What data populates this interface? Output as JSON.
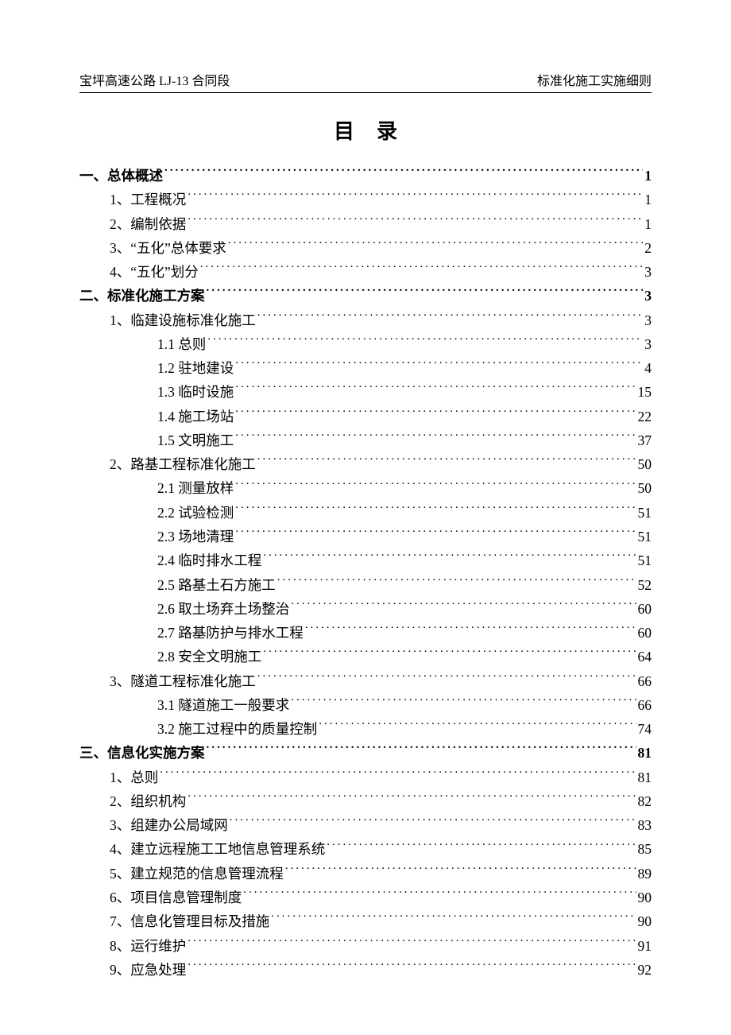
{
  "header": {
    "left": "宝坪高速公路 LJ-13 合同段",
    "right": "标准化施工实施细则"
  },
  "title": "目录",
  "toc": [
    {
      "level": 1,
      "bold": true,
      "label": "一、总体概述",
      "page": "1"
    },
    {
      "level": 2,
      "bold": false,
      "label": "1、工程概况",
      "page": "1"
    },
    {
      "level": 2,
      "bold": false,
      "label": "2、编制依据",
      "page": "1"
    },
    {
      "level": 2,
      "bold": false,
      "label": "3、“五化”总体要求",
      "page": "2"
    },
    {
      "level": 2,
      "bold": false,
      "label": "4、“五化”划分",
      "page": "3"
    },
    {
      "level": 1,
      "bold": true,
      "label": "二、标准化施工方案",
      "page": "3"
    },
    {
      "level": 2,
      "bold": false,
      "label": "1、临建设施标准化施工",
      "page": "3"
    },
    {
      "level": 3,
      "bold": false,
      "label": "1.1 总则",
      "page": "3"
    },
    {
      "level": 3,
      "bold": false,
      "label": "1.2 驻地建设",
      "page": "4"
    },
    {
      "level": 3,
      "bold": false,
      "label": "1.3 临时设施",
      "page": "15"
    },
    {
      "level": 3,
      "bold": false,
      "label": "1.4 施工场站",
      "page": "22"
    },
    {
      "level": 3,
      "bold": false,
      "label": "1.5 文明施工",
      "page": "37"
    },
    {
      "level": 2,
      "bold": false,
      "label": "2、路基工程标准化施工",
      "page": "50"
    },
    {
      "level": 3,
      "bold": false,
      "label": "2.1 测量放样",
      "page": "50"
    },
    {
      "level": 3,
      "bold": false,
      "label": "2.2 试验检测",
      "page": "51"
    },
    {
      "level": 3,
      "bold": false,
      "label": "2.3 场地清理",
      "page": "51"
    },
    {
      "level": 3,
      "bold": false,
      "label": "2.4 临时排水工程",
      "page": "51"
    },
    {
      "level": 3,
      "bold": false,
      "label": "2.5 路基土石方施工",
      "page": "52"
    },
    {
      "level": 3,
      "bold": false,
      "label": "2.6 取土场弃土场整治",
      "page": "60"
    },
    {
      "level": 3,
      "bold": false,
      "label": "2.7 路基防护与排水工程",
      "page": "60"
    },
    {
      "level": 3,
      "bold": false,
      "label": "2.8 安全文明施工",
      "page": "64"
    },
    {
      "level": 2,
      "bold": false,
      "label": "3、隧道工程标准化施工",
      "page": "66"
    },
    {
      "level": 3,
      "bold": false,
      "label": "3.1 隧道施工一般要求",
      "page": "66"
    },
    {
      "level": 3,
      "bold": false,
      "label": "3.2 施工过程中的质量控制",
      "page": "74"
    },
    {
      "level": 1,
      "bold": true,
      "label": "三、信息化实施方案",
      "page": "81"
    },
    {
      "level": 2,
      "bold": false,
      "label": "1、总则",
      "page": "81"
    },
    {
      "level": 2,
      "bold": false,
      "label": "2、组织机构",
      "page": "82"
    },
    {
      "level": 2,
      "bold": false,
      "label": "3、组建办公局域网",
      "page": "83"
    },
    {
      "level": 2,
      "bold": false,
      "label": "4、建立远程施工工地信息管理系统",
      "page": "85"
    },
    {
      "level": 2,
      "bold": false,
      "label": "5、建立规范的信息管理流程",
      "page": "89"
    },
    {
      "level": 2,
      "bold": false,
      "label": "6、项目信息管理制度",
      "page": "90"
    },
    {
      "level": 2,
      "bold": false,
      "label": "7、信息化管理目标及措施",
      "page": "90"
    },
    {
      "level": 2,
      "bold": false,
      "label": "8、运行维护",
      "page": "91"
    },
    {
      "level": 2,
      "bold": false,
      "label": "9、应急处理",
      "page": "92"
    }
  ]
}
